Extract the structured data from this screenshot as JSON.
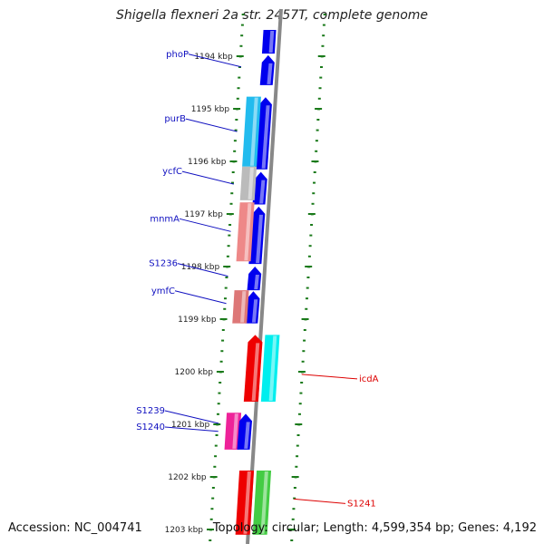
{
  "title": "Shigella flexneri 2a str. 2457T, complete genome",
  "accession": "Accession: NC_004741",
  "topology": "Topology: circular; Length: 4,599,354 bp; Genes: 4,192",
  "colors": {
    "backbone": "#888888",
    "tick": "#1a7a1a",
    "left_label": "#1010c0",
    "right_label": "#dd0000"
  },
  "scale": {
    "unit": "kbp",
    "ticks": [
      {
        "value": 1194,
        "label": "1194 kbp"
      },
      {
        "value": 1195,
        "label": "1195 kbp"
      },
      {
        "value": 1196,
        "label": "1196 kbp"
      },
      {
        "value": 1197,
        "label": "1197 kbp"
      },
      {
        "value": 1198,
        "label": "1198 kbp"
      },
      {
        "value": 1199,
        "label": "1199 kbp"
      },
      {
        "value": 1200,
        "label": "1200 kbp"
      },
      {
        "value": 1201,
        "label": "1201 kbp"
      },
      {
        "value": 1202,
        "label": "1202 kbp"
      },
      {
        "value": 1203,
        "label": "1203 kbp"
      }
    ]
  },
  "genes": [
    {
      "lane": "fwd",
      "start": 1193.5,
      "end": 1193.95,
      "color": "#0000ee",
      "arrow": false
    },
    {
      "lane": "fwd",
      "start": 1193.98,
      "end": 1194.55,
      "color": "#0000ee",
      "arrow": true
    },
    {
      "lane": "fwd",
      "start": 1194.78,
      "end": 1196.15,
      "color": "#0000ee",
      "arrow": true
    },
    {
      "lane": "fwd",
      "start": 1196.2,
      "end": 1196.82,
      "color": "#0000ee",
      "arrow": true
    },
    {
      "lane": "fwd",
      "start": 1196.86,
      "end": 1197.95,
      "color": "#0000ee",
      "arrow": true
    },
    {
      "lane": "fwd",
      "start": 1198.0,
      "end": 1198.45,
      "color": "#0000ee",
      "arrow": true
    },
    {
      "lane": "fwd",
      "start": 1198.47,
      "end": 1199.08,
      "color": "#0000ee",
      "arrow": true
    },
    {
      "lane": "rev",
      "start": 1194.77,
      "end": 1196.1,
      "color": "#22bbee",
      "arrow": false
    },
    {
      "lane": "rev",
      "start": 1196.1,
      "end": 1196.74,
      "color": "#bbbbbb",
      "arrow": false
    },
    {
      "lane": "rev",
      "start": 1196.78,
      "end": 1197.9,
      "color": "#ee8888",
      "arrow": false
    },
    {
      "lane": "rev",
      "start": 1198.45,
      "end": 1199.08,
      "color": "#dd7777",
      "arrow": false
    },
    {
      "lane": "rev",
      "start": 1200.78,
      "end": 1201.48,
      "color": "#ee2299",
      "arrow": false
    },
    {
      "lane": "fwd",
      "start": 1200.8,
      "end": 1201.48,
      "color": "#0000ee",
      "arrow": true
    },
    {
      "lane": "fwd2",
      "start": 1199.3,
      "end": 1200.57,
      "color": "#ee0000",
      "arrow": true
    },
    {
      "lane": "fwd3",
      "start": 1199.3,
      "end": 1200.57,
      "color": "#00eeee",
      "arrow": false
    },
    {
      "lane": "fwd2",
      "start": 1201.88,
      "end": 1203.1,
      "color": "#ee0000",
      "arrow": false
    },
    {
      "lane": "fwd3",
      "start": 1201.88,
      "end": 1203.1,
      "color": "#44cc44",
      "arrow": false
    }
  ],
  "labels_left": [
    {
      "text": "phoP",
      "pos": 1194.22,
      "label_y_offset": 0
    },
    {
      "text": "purB",
      "pos": 1195.45,
      "label_y_offset": 0
    },
    {
      "text": "ycfC",
      "pos": 1196.45,
      "label_y_offset": 0
    },
    {
      "text": "mnmA",
      "pos": 1197.35,
      "label_y_offset": 0
    },
    {
      "text": "S1236",
      "pos": 1198.2,
      "label_y_offset": 0
    },
    {
      "text": "ymfC",
      "pos": 1198.72,
      "label_y_offset": 0
    },
    {
      "text": "S1239",
      "pos": 1201.0,
      "label_y_offset": 0
    },
    {
      "text": "S1240",
      "pos": 1201.15,
      "label_y_offset": 0
    }
  ],
  "labels_right": [
    {
      "text": "icdA",
      "pos": 1200.05
    },
    {
      "text": "S1241",
      "pos": 1202.42
    }
  ]
}
